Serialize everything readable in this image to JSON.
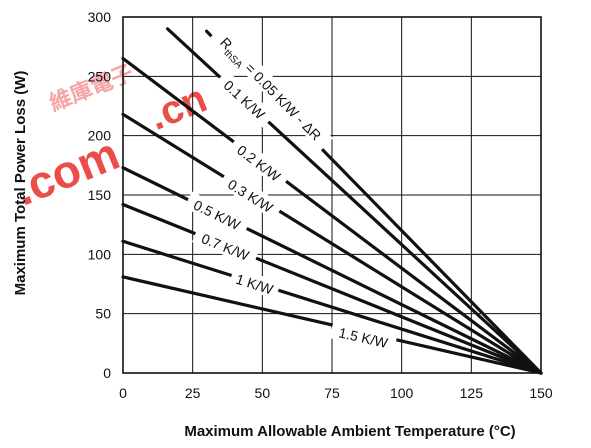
{
  "chart_data": {
    "type": "line",
    "title": "",
    "xlabel": "Maximum Allowable Ambient Temperature (°C)",
    "ylabel": "Maximum Total Power Loss (W)",
    "xlim": [
      0,
      150
    ],
    "ylim": [
      0,
      300
    ],
    "xticks": [
      0,
      25,
      50,
      75,
      100,
      125,
      150
    ],
    "yticks": [
      0,
      50,
      100,
      150,
      200,
      250,
      300
    ],
    "grid": true,
    "series": [
      {
        "name": "ΔR",
        "label_display": "R",
        "label_sub": "thSA",
        "label_rest": " = 0.05 K/W - ΔR",
        "x": [
          30,
          150
        ],
        "y": [
          288,
          0
        ]
      },
      {
        "name": "0.1 K/W",
        "x": [
          16,
          150
        ],
        "y": [
          290,
          0
        ]
      },
      {
        "name": "0.2 K/W",
        "x": [
          0,
          150
        ],
        "y": [
          265,
          0
        ]
      },
      {
        "name": "0.3 K/W",
        "x": [
          0,
          150
        ],
        "y": [
          218,
          0
        ]
      },
      {
        "name": "0.5 K/W",
        "x": [
          0,
          150
        ],
        "y": [
          173,
          0
        ]
      },
      {
        "name": "0.7 K/W",
        "x": [
          0,
          150
        ],
        "y": [
          142,
          0
        ]
      },
      {
        "name": "1 K/W",
        "x": [
          0,
          150
        ],
        "y": [
          111,
          0
        ]
      },
      {
        "name": "1.5 K/W",
        "x": [
          0,
          150
        ],
        "y": [
          81,
          0
        ]
      }
    ]
  },
  "watermark": {
    "color": "#e8302a"
  }
}
